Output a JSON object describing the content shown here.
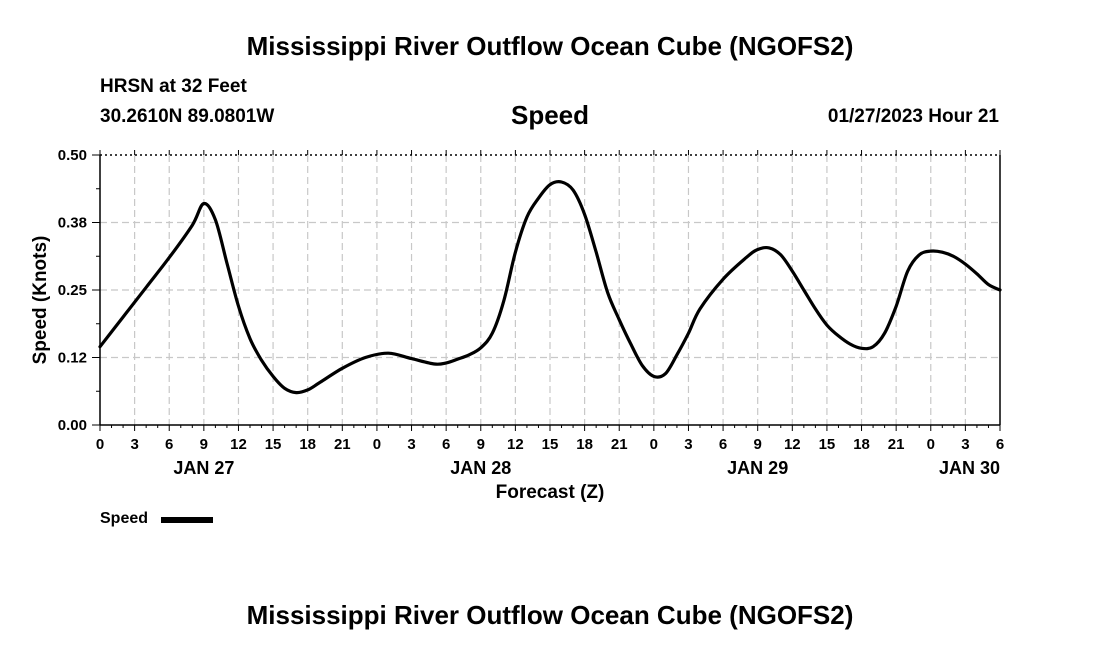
{
  "page": {
    "title": "Mississippi River Outflow Ocean Cube (NGOFS2)",
    "footer_title": "Mississippi River Outflow Ocean Cube (NGOFS2)",
    "station": "HRSN at 32 Feet",
    "coords": "30.2610N  89.0801W",
    "date": "01/27/2023 Hour 21"
  },
  "legend": {
    "label": "Speed",
    "line_color": "#000000"
  },
  "chart_data": {
    "type": "line",
    "title": "Speed",
    "xlabel": "Forecast (Z)",
    "ylabel": "Speed (Knots)",
    "ylim": [
      0,
      0.5
    ],
    "yticks": [
      "0.00",
      "0.12",
      "0.25",
      "0.38",
      "0.50"
    ],
    "xlim_hours": [
      0,
      78
    ],
    "xticks": [
      "0",
      "3",
      "6",
      "9",
      "12",
      "15",
      "18",
      "21",
      "0",
      "3",
      "6",
      "9",
      "12",
      "15",
      "18",
      "21",
      "0",
      "3",
      "6",
      "9",
      "12",
      "15",
      "18",
      "21",
      "0",
      "3",
      "6"
    ],
    "day_labels": [
      {
        "label": "JAN 27",
        "hour": 9
      },
      {
        "label": "JAN 28",
        "hour": 33
      },
      {
        "label": "JAN 29",
        "hour": 57
      },
      {
        "label": "JAN 30",
        "hour": 78
      }
    ],
    "grid": true,
    "series": [
      {
        "name": "Speed",
        "color": "#000000",
        "x": [
          0,
          2,
          4,
          6,
          8,
          9,
          10,
          11,
          12,
          13,
          14,
          15,
          16,
          17,
          18,
          19,
          21,
          23,
          25,
          27,
          29,
          30,
          31,
          32,
          33,
          34,
          35,
          36,
          37,
          38,
          39,
          40,
          41,
          42,
          43,
          44,
          45,
          46,
          47,
          48,
          49,
          50,
          51,
          52,
          54,
          56,
          57,
          58,
          59,
          60,
          61,
          62,
          63,
          64,
          65,
          66,
          67,
          68,
          69,
          70,
          71,
          72,
          73,
          74,
          75,
          76,
          77,
          78
        ],
        "values": [
          0.145,
          0.2,
          0.255,
          0.31,
          0.37,
          0.41,
          0.38,
          0.3,
          0.22,
          0.16,
          0.12,
          0.09,
          0.068,
          0.06,
          0.065,
          0.078,
          0.105,
          0.125,
          0.133,
          0.123,
          0.113,
          0.115,
          0.122,
          0.13,
          0.143,
          0.17,
          0.23,
          0.32,
          0.385,
          0.42,
          0.445,
          0.45,
          0.435,
          0.39,
          0.32,
          0.245,
          0.195,
          0.15,
          0.11,
          0.09,
          0.095,
          0.13,
          0.17,
          0.215,
          0.27,
          0.31,
          0.325,
          0.328,
          0.315,
          0.285,
          0.25,
          0.215,
          0.185,
          0.165,
          0.15,
          0.142,
          0.145,
          0.17,
          0.22,
          0.285,
          0.315,
          0.322,
          0.32,
          0.312,
          0.298,
          0.28,
          0.26,
          0.25
        ]
      }
    ]
  }
}
